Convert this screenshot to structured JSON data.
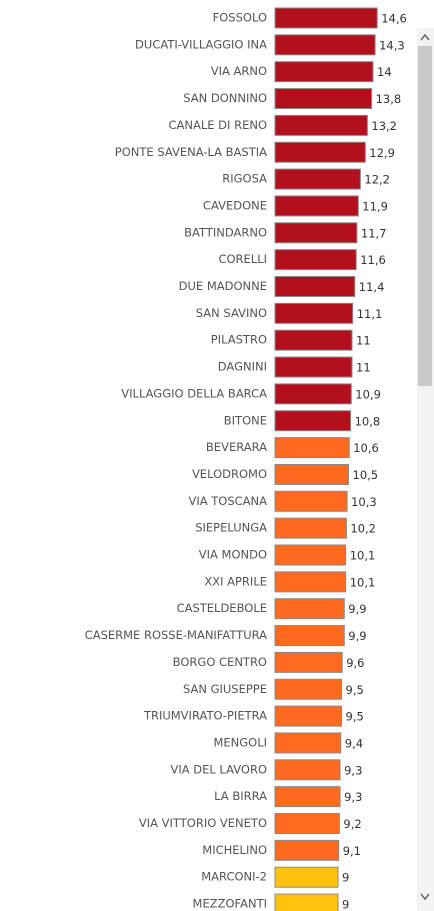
{
  "chart_data": {
    "type": "bar",
    "orientation": "horizontal",
    "categories": [
      "FOSSOLO",
      "DUCATI-VILLAGGIO INA",
      "VIA ARNO",
      "SAN DONNINO",
      "CANALE DI RENO",
      "PONTE SAVENA-LA BASTIA",
      "RIGOSA",
      "CAVEDONE",
      "BATTINDARNO",
      "CORELLI",
      "DUE MADONNE",
      "SAN SAVINO",
      "PILASTRO",
      "DAGNINI",
      "VILLAGGIO DELLA BARCA",
      "BITONE",
      "BEVERARA",
      "VELODROMO",
      "VIA TOSCANA",
      "SIEPELUNGA",
      "VIA MONDO",
      "XXI APRILE",
      "CASTELDEBOLE",
      "CASERME ROSSE-MANIFATTURA",
      "BORGO CENTRO",
      "SAN GIUSEPPE",
      "TRIUMVIRATO-PIETRA",
      "MENGOLI",
      "VIA DEL LAVORO",
      "LA BIRRA",
      "VIA VITTORIO VENETO",
      "MICHELINO",
      "MARCONI-2",
      "MEZZOFANTI"
    ],
    "values": [
      14.6,
      14.3,
      14,
      13.8,
      13.2,
      12.9,
      12.2,
      11.9,
      11.7,
      11.6,
      11.4,
      11.1,
      11,
      11,
      10.9,
      10.8,
      10.6,
      10.5,
      10.3,
      10.2,
      10.1,
      10.1,
      9.9,
      9.9,
      9.6,
      9.5,
      9.5,
      9.4,
      9.3,
      9.3,
      9.2,
      9.1,
      9,
      9
    ],
    "value_labels": [
      "14,6",
      "14,3",
      "14",
      "13,8",
      "13,2",
      "12,9",
      "12,2",
      "11,9",
      "11,7",
      "11,6",
      "11,4",
      "11,1",
      "11",
      "11",
      "10,9",
      "10,8",
      "10,6",
      "10,5",
      "10,3",
      "10,2",
      "10,1",
      "10,1",
      "9,9",
      "9,9",
      "9,6",
      "9,5",
      "9,5",
      "9,4",
      "9,3",
      "9,3",
      "9,2",
      "9,1",
      "9",
      "9"
    ],
    "colors": [
      "#b3101e",
      "#b3101e",
      "#b3101e",
      "#b3101e",
      "#b3101e",
      "#b3101e",
      "#b3101e",
      "#b3101e",
      "#b3101e",
      "#b3101e",
      "#b3101e",
      "#b3101e",
      "#b3101e",
      "#b3101e",
      "#b3101e",
      "#b3101e",
      "#ff6a1f",
      "#ff6a1f",
      "#ff6a1f",
      "#ff6a1f",
      "#ff6a1f",
      "#ff6a1f",
      "#ff6a1f",
      "#ff6a1f",
      "#ff6a1f",
      "#ff6a1f",
      "#ff6a1f",
      "#ff6a1f",
      "#ff6a1f",
      "#ff6a1f",
      "#ff6a1f",
      "#ff6a1f",
      "#ffc20e",
      "#ffc20e"
    ]
  }
}
